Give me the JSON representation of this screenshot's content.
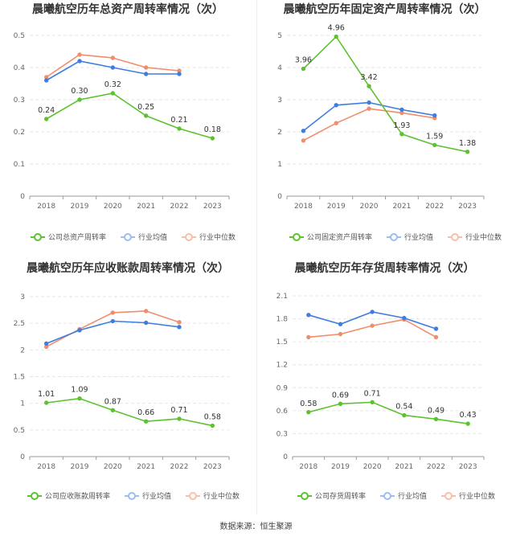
{
  "colors": {
    "company": "#5cc22f",
    "industry_avg": "#3f7de0",
    "industry_median": "#f28c6a",
    "grid": "#e6e6e6",
    "axis": "#9a9a9a"
  },
  "source": "数据来源：恒生聚源",
  "chart_data": [
    {
      "type": "line",
      "title": "晨曦航空历年总资产周转率情况（次）",
      "categories": [
        "2018",
        "2019",
        "2020",
        "2021",
        "2022",
        "2023"
      ],
      "ylim": [
        0,
        0.5
      ],
      "yticks": [
        "0",
        "0.1",
        "0.2",
        "0.3",
        "0.4",
        "0.5"
      ],
      "series": [
        {
          "name": "公司总资产周转率",
          "values": [
            0.24,
            0.3,
            0.32,
            0.25,
            0.21,
            0.18
          ],
          "labels": [
            "0.24",
            "0.30",
            "0.32",
            "0.25",
            "0.21",
            "0.18"
          ]
        },
        {
          "name": "行业均值",
          "values": [
            0.36,
            0.42,
            0.4,
            0.38,
            0.38,
            null
          ]
        },
        {
          "name": "行业中位数",
          "values": [
            0.37,
            0.44,
            0.43,
            0.4,
            0.39,
            null
          ]
        }
      ]
    },
    {
      "type": "line",
      "title": "晨曦航空历年固定资产周转率情况（次）",
      "categories": [
        "2018",
        "2019",
        "2020",
        "2021",
        "2022",
        "2023"
      ],
      "ylim": [
        0,
        5
      ],
      "yticks": [
        "0",
        "1",
        "2",
        "3",
        "4",
        "5"
      ],
      "series": [
        {
          "name": "公司固定资产周转率",
          "values": [
            3.96,
            4.96,
            3.42,
            1.93,
            1.59,
            1.38
          ],
          "labels": [
            "3.96",
            "4.96",
            "3.42",
            "1.93",
            "1.59",
            "1.38"
          ]
        },
        {
          "name": "行业均值",
          "values": [
            2.03,
            2.83,
            2.91,
            2.69,
            2.51,
            null
          ]
        },
        {
          "name": "行业中位数",
          "values": [
            1.73,
            2.27,
            2.72,
            2.59,
            2.43,
            null
          ]
        }
      ]
    },
    {
      "type": "line",
      "title": "晨曦航空历年应收账款周转率情况（次）",
      "categories": [
        "2018",
        "2019",
        "2020",
        "2021",
        "2022",
        "2023"
      ],
      "ylim": [
        0,
        3
      ],
      "yticks": [
        "0",
        "0.5",
        "1",
        "1.5",
        "2",
        "2.5",
        "3"
      ],
      "series": [
        {
          "name": "公司应收账款周转率",
          "values": [
            1.01,
            1.09,
            0.87,
            0.66,
            0.71,
            0.58
          ],
          "labels": [
            "1.01",
            "1.09",
            "0.87",
            "0.66",
            "0.71",
            "0.58"
          ]
        },
        {
          "name": "行业均值",
          "values": [
            2.12,
            2.37,
            2.54,
            2.51,
            2.43,
            null
          ]
        },
        {
          "name": "行业中位数",
          "values": [
            2.06,
            2.39,
            2.7,
            2.73,
            2.52,
            null
          ]
        }
      ]
    },
    {
      "type": "line",
      "title": "晨曦航空历年存货周转率情况（次）",
      "categories": [
        "2018",
        "2019",
        "2020",
        "2021",
        "2022",
        "2023"
      ],
      "ylim": [
        0,
        2.1
      ],
      "yticks": [
        "0",
        "0.3",
        "0.6",
        "0.9",
        "1.2",
        "1.5",
        "1.8",
        "2.1"
      ],
      "series": [
        {
          "name": "公司存货周转率",
          "values": [
            0.58,
            0.69,
            0.71,
            0.54,
            0.49,
            0.43
          ],
          "labels": [
            "0.58",
            "0.69",
            "0.71",
            "0.54",
            "0.49",
            "0.43"
          ]
        },
        {
          "name": "行业均值",
          "values": [
            1.85,
            1.73,
            1.89,
            1.81,
            1.67,
            null
          ]
        },
        {
          "name": "行业中位数",
          "values": [
            1.56,
            1.6,
            1.71,
            1.79,
            1.56,
            null
          ]
        }
      ]
    }
  ]
}
